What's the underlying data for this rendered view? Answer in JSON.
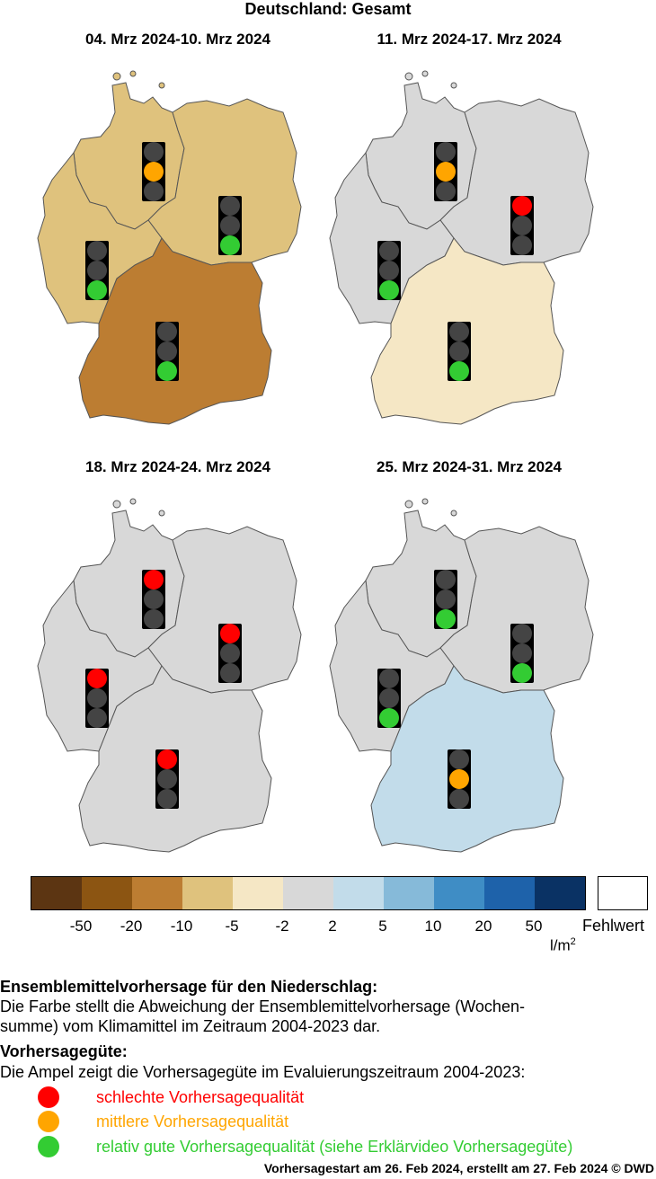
{
  "title": "Deutschland: Gesamt",
  "colors": {
    "lamp_off": "#444444",
    "red": "#ff0000",
    "orange": "#ffa500",
    "green": "#33cc33",
    "bins": [
      "#5c3512",
      "#8c5512",
      "#bc7d32",
      "#dfc27d",
      "#f5e7c5",
      "#d8d8d8",
      "#c2dcea",
      "#86bad9",
      "#3f8dc5",
      "#1e62aa",
      "#0a3264"
    ]
  },
  "legend": {
    "ticks": [
      "-50",
      "-20",
      "-10",
      "-5",
      "-2",
      "2",
      "5",
      "10",
      "20",
      "50"
    ],
    "unit": "l/m",
    "unit_sup": "2",
    "missing_label": "Fehlwert"
  },
  "panels": [
    {
      "period": "04. Mrz 2024-10. Mrz 2024",
      "regions": {
        "nw": "#dfc27d",
        "ne": "#dfc27d",
        "west": "#dfc27d",
        "south": "#bc7d32"
      },
      "lights": {
        "nw": "orange",
        "ne": "green",
        "west": "green",
        "south": "green"
      }
    },
    {
      "period": "11. Mrz 2024-17. Mrz 2024",
      "regions": {
        "nw": "#d8d8d8",
        "ne": "#d8d8d8",
        "west": "#d8d8d8",
        "south": "#f5e7c5"
      },
      "lights": {
        "nw": "orange",
        "ne": "red",
        "west": "green",
        "south": "green"
      }
    },
    {
      "period": "18. Mrz 2024-24. Mrz 2024",
      "regions": {
        "nw": "#d8d8d8",
        "ne": "#d8d8d8",
        "west": "#d8d8d8",
        "south": "#d8d8d8"
      },
      "lights": {
        "nw": "red",
        "ne": "red",
        "west": "red",
        "south": "red"
      }
    },
    {
      "period": "25. Mrz 2024-31. Mrz 2024",
      "regions": {
        "nw": "#d8d8d8",
        "ne": "#d8d8d8",
        "west": "#d8d8d8",
        "south": "#c2dcea"
      },
      "lights": {
        "nw": "green",
        "ne": "green",
        "west": "green",
        "south": "orange"
      }
    }
  ],
  "text": {
    "heading1": "Ensemblemittelvorhersage für den Niederschlag:",
    "body1a": "Die Farbe stellt die Abweichung der Ensemblemittelvorhersage (Wochen-",
    "body1b": "summe) vom Klimamittel im Zeitraum 2004-2023 dar.",
    "heading2": "Vorhersagegüte:",
    "body2": "Die Ampel zeigt die Vorhersagegüte im Evaluierungszeitraum 2004-2023:",
    "bad": "schlechte Vorhersagequalität",
    "mid": "mittlere Vorhersagequalität",
    "good": "relativ gute Vorhersagequalität (siehe Erklärvideo Vorhersagegüte)",
    "footer": "Vorhersagestart am 26. Feb 2024, erstellt am 27. Feb 2024 © DWD"
  }
}
